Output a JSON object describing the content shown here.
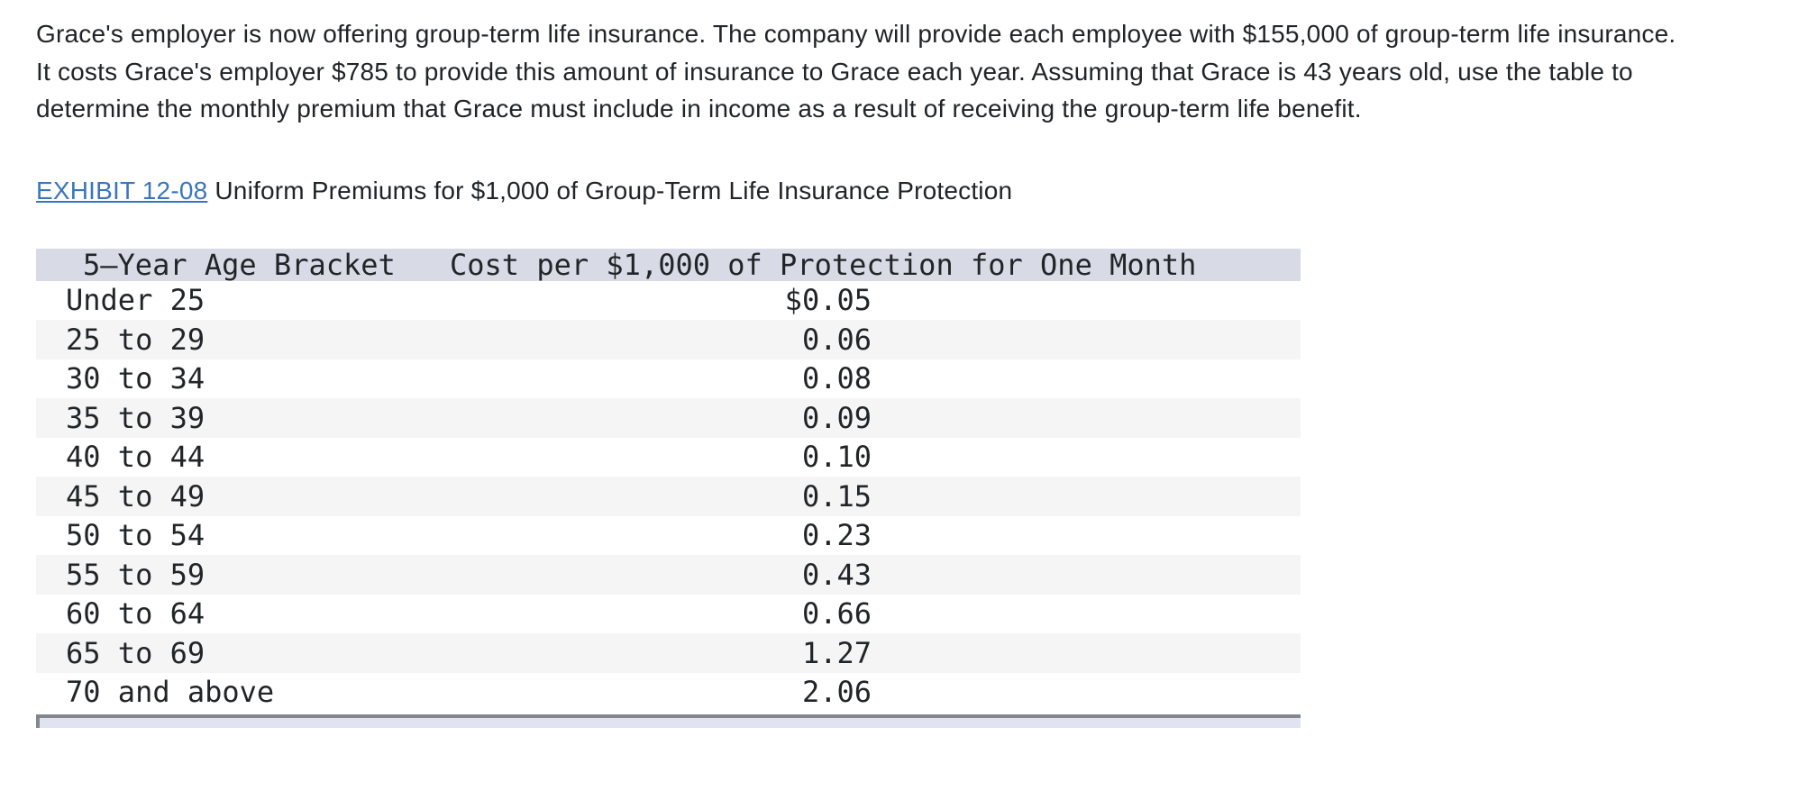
{
  "question": {
    "paragraph": "Grace's employer is now offering group-term life insurance. The company will provide each employee with $155,000 of group-term life insurance. It costs Grace's employer $785 to provide this amount of insurance to Grace each year. Assuming that Grace is 43 years old, use the table to determine the monthly premium that Grace must include in income as a result of receiving the group-term life benefit."
  },
  "exhibit": {
    "link_label": "EXHIBIT 12-08",
    "caption": " Uniform Premiums for $1,000 of Group-Term Life Insurance Protection"
  },
  "table": {
    "headers": [
      "5–Year Age Bracket",
      "Cost per $1,000 of Protection for One Month"
    ],
    "rows": [
      {
        "bracket": "Under 25",
        "cost": "$0.05"
      },
      {
        "bracket": "25 to 29",
        "cost": "0.06"
      },
      {
        "bracket": "30 to 34",
        "cost": "0.08"
      },
      {
        "bracket": "35 to 39",
        "cost": "0.09"
      },
      {
        "bracket": "40 to 44",
        "cost": "0.10"
      },
      {
        "bracket": "45 to 49",
        "cost": "0.15"
      },
      {
        "bracket": "50 to 54",
        "cost": "0.23"
      },
      {
        "bracket": "55 to 59",
        "cost": "0.43"
      },
      {
        "bracket": "60 to 64",
        "cost": "0.66"
      },
      {
        "bracket": "65 to 69",
        "cost": "1.27"
      },
      {
        "bracket": "70 and above",
        "cost": "2.06"
      }
    ]
  },
  "colors": {
    "link_blue": "#3b76bd",
    "table_header_bg": "#d8dbe6",
    "alt_row_bg": "#f5f5f6",
    "scrollbar_fill": "#e0e3f0",
    "scrollbar_border": "#84878d",
    "text": "#212427"
  }
}
